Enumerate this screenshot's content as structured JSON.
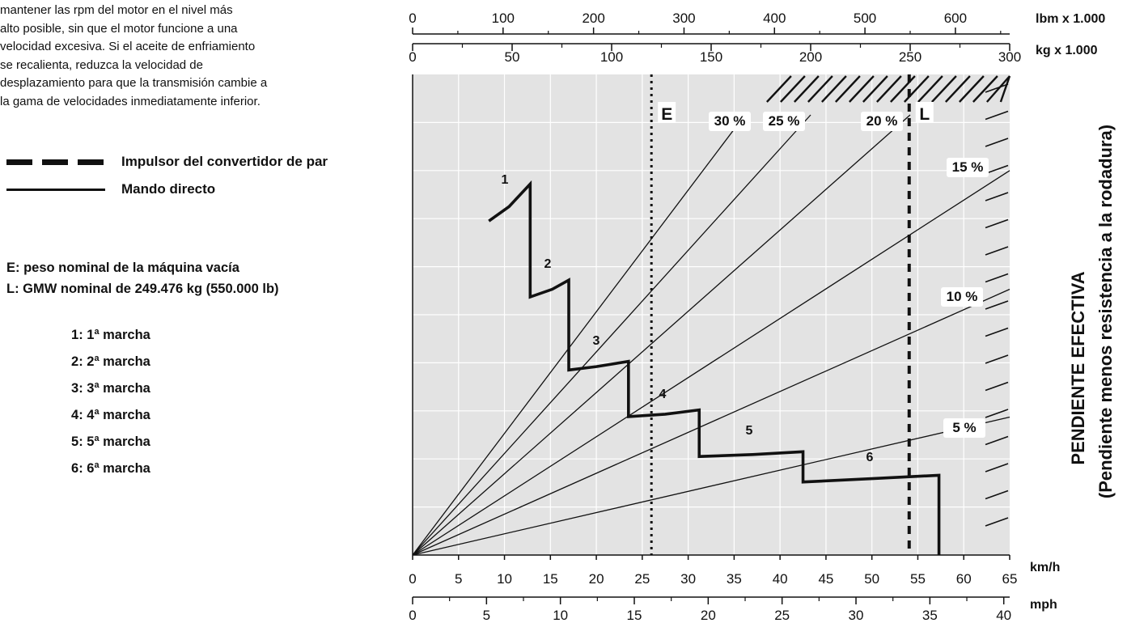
{
  "intro_text": "mantener las rpm del motor en el nivel más\nalto posible, sin que el motor funcione a una\nvelocidad excesiva. Si el aceite de enfriamiento\nse recalienta, reduzca la velocidad de\ndesplazamiento para que la transmisión cambie a\nla gama de velocidades inmediatamente inferior.",
  "legend": {
    "torque_converter": "Impulsor del convertidor de par",
    "direct_drive": "Mando directo"
  },
  "definitions": {
    "E": "E: peso nominal de la máquina vacía",
    "L": "L: GMW nominal de 249.476 kg (550.000 lb)"
  },
  "gears_legend": [
    {
      "num": "1",
      "text": ": 1ª marcha"
    },
    {
      "num": "2",
      "text": ": 2ª marcha"
    },
    {
      "num": "3",
      "text": ": 3ª marcha"
    },
    {
      "num": "4",
      "text": ": 4ª marcha"
    },
    {
      "num": "5",
      "text": ": 5ª marcha"
    },
    {
      "num": "6",
      "text": ": 6ª marcha"
    }
  ],
  "colors": {
    "grid_background": "#e3e3e3",
    "grid_lines": "#ffffff",
    "ink": "#111111"
  },
  "chart_data": {
    "type": "line",
    "axes": {
      "top_lbm": {
        "label": "lbm x 1.000",
        "ticks": [
          "0",
          "100",
          "200",
          "300",
          "400",
          "500",
          "600"
        ],
        "range": [
          0,
          660
        ]
      },
      "top_kg": {
        "label": "kg x 1.000",
        "ticks": [
          "0",
          "50",
          "100",
          "150",
          "200",
          "250",
          "300"
        ],
        "range": [
          0,
          300
        ]
      },
      "bottom_kmh": {
        "label": "km/h",
        "ticks": [
          "0",
          "5",
          "10",
          "15",
          "20",
          "25",
          "30",
          "35",
          "40",
          "45",
          "50",
          "55",
          "60",
          "65"
        ],
        "range": [
          0,
          65
        ]
      },
      "bottom_mph": {
        "label": "mph",
        "ticks": [
          "0",
          "5",
          "10",
          "15",
          "20",
          "25",
          "30",
          "35",
          "40"
        ],
        "range": [
          0,
          40.4
        ]
      },
      "right_label_line1": "PENDIENTE EFECTIVA",
      "right_label_line2": "(Pendiente menos resistencia a la rodadura)"
    },
    "weight_markers": [
      {
        "label": "E",
        "kg": 120,
        "style": "dotted"
      },
      {
        "label": "L",
        "kg": 249.5,
        "style": "dashed"
      }
    ],
    "grade_lines": [
      {
        "label": "30 %",
        "end_kg": 167
      },
      {
        "label": "25 %",
        "end_kg": 200
      },
      {
        "label": "20 %",
        "end_kg": 250
      },
      {
        "label": "15 %",
        "end_kg": 300,
        "end_rimpull_frac": 0.8
      },
      {
        "label": "10 %",
        "end_kg": 300,
        "end_rimpull_frac": 0.553
      },
      {
        "label": "5 %",
        "end_kg": 300,
        "end_rimpull_frac": 0.287
      }
    ],
    "rimpull_curve": {
      "gear_labels": [
        "1",
        "2",
        "3",
        "4",
        "5",
        "6"
      ],
      "points_kmh_frac": [
        [
          8.3,
          0.695
        ],
        [
          10.5,
          0.725
        ],
        [
          12.8,
          0.772
        ],
        [
          12.8,
          0.537
        ],
        [
          15.2,
          0.553
        ],
        [
          17.0,
          0.572
        ],
        [
          17.0,
          0.385
        ],
        [
          20.0,
          0.392
        ],
        [
          23.5,
          0.403
        ],
        [
          23.5,
          0.288
        ],
        [
          27.5,
          0.293
        ],
        [
          31.2,
          0.302
        ],
        [
          31.2,
          0.205
        ],
        [
          37.0,
          0.209
        ],
        [
          42.5,
          0.215
        ],
        [
          42.5,
          0.152
        ],
        [
          50.0,
          0.159
        ],
        [
          57.3,
          0.166
        ],
        [
          57.3,
          0
        ]
      ]
    },
    "xlim_kmh": [
      0,
      65
    ],
    "grid": true
  }
}
